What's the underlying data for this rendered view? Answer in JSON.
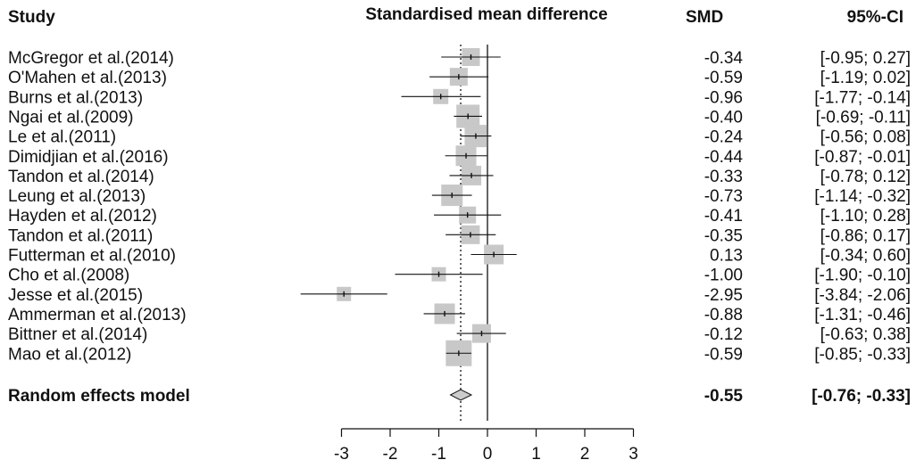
{
  "chart_data": {
    "type": "forest",
    "headers": {
      "study": "Study",
      "plot": "Standardised mean difference",
      "smd": "SMD",
      "ci": "95%-CI"
    },
    "studies": [
      {
        "name": "McGregor et al.(2014)",
        "smd": -0.34,
        "lower": -0.95,
        "upper": 0.27,
        "smd_text": "-0.34",
        "ci_text": "[-0.95;  0.27]",
        "weight": 1.0
      },
      {
        "name": "O'Mahen et al.(2013)",
        "smd": -0.59,
        "lower": -1.19,
        "upper": 0.02,
        "smd_text": "-0.59",
        "ci_text": "[-1.19;  0.02]",
        "weight": 1.0
      },
      {
        "name": "Burns et al.(2013)",
        "smd": -0.96,
        "lower": -1.77,
        "upper": -0.14,
        "smd_text": "-0.96",
        "ci_text": "[-1.77; -0.14]",
        "weight": 0.85
      },
      {
        "name": "Ngai et al.(2009)",
        "smd": -0.4,
        "lower": -0.69,
        "upper": -0.11,
        "smd_text": "-0.40",
        "ci_text": "[-0.69; -0.11]",
        "weight": 1.3
      },
      {
        "name": "Le et al.(2011)",
        "smd": -0.24,
        "lower": -0.56,
        "upper": 0.08,
        "smd_text": "-0.24",
        "ci_text": "[-0.56;  0.08]",
        "weight": 1.25
      },
      {
        "name": "Dimidjian et al.(2016)",
        "smd": -0.44,
        "lower": -0.87,
        "upper": -0.01,
        "smd_text": "-0.44",
        "ci_text": "[-0.87; -0.01]",
        "weight": 1.15
      },
      {
        "name": "Tandon et al.(2014)",
        "smd": -0.33,
        "lower": -0.78,
        "upper": 0.12,
        "smd_text": "-0.33",
        "ci_text": "[-0.78;  0.12]",
        "weight": 1.1
      },
      {
        "name": "Leung et al.(2013)",
        "smd": -0.73,
        "lower": -1.14,
        "upper": -0.32,
        "smd_text": "-0.73",
        "ci_text": "[-1.14; -0.32]",
        "weight": 1.2
      },
      {
        "name": "Hayden et al.(2012)",
        "smd": -0.41,
        "lower": -1.1,
        "upper": 0.28,
        "smd_text": "-0.41",
        "ci_text": "[-1.10;  0.28]",
        "weight": 0.95
      },
      {
        "name": "Tandon et al.(2011)",
        "smd": -0.35,
        "lower": -0.86,
        "upper": 0.17,
        "smd_text": "-0.35",
        "ci_text": "[-0.86;  0.17]",
        "weight": 1.05
      },
      {
        "name": "Futterman et al.(2010)",
        "smd": 0.13,
        "lower": -0.34,
        "upper": 0.6,
        "smd_text": "0.13",
        "ci_text": "[-0.34;  0.60]",
        "weight": 1.1
      },
      {
        "name": "Cho et al.(2008)",
        "smd": -1.0,
        "lower": -1.9,
        "upper": -0.1,
        "smd_text": "-1.00",
        "ci_text": "[-1.90; -0.10]",
        "weight": 0.8
      },
      {
        "name": "Jesse et al.(2015)",
        "smd": -2.95,
        "lower": -3.84,
        "upper": -2.06,
        "smd_text": "-2.95",
        "ci_text": "[-3.84; -2.06]",
        "weight": 0.8
      },
      {
        "name": "Ammerman et al.(2013)",
        "smd": -0.88,
        "lower": -1.31,
        "upper": -0.46,
        "smd_text": "-0.88",
        "ci_text": "[-1.31; -0.46]",
        "weight": 1.15
      },
      {
        "name": "Bittner et al.(2014)",
        "smd": -0.12,
        "lower": -0.63,
        "upper": 0.38,
        "smd_text": "-0.12",
        "ci_text": "[-0.63;  0.38]",
        "weight": 1.05
      },
      {
        "name": "Mao et al.(2012)",
        "smd": -0.59,
        "lower": -0.85,
        "upper": -0.33,
        "smd_text": "-0.59",
        "ci_text": "[-0.85; -0.33]",
        "weight": 1.45
      }
    ],
    "summary": {
      "name": "Random effects model",
      "smd": -0.55,
      "lower": -0.76,
      "upper": -0.33,
      "smd_text": "-0.55",
      "ci_text": "[-0.76; -0.33]"
    },
    "x_axis": {
      "ticks": [
        -3,
        -2,
        -1,
        0,
        1,
        2,
        3
      ],
      "tick_labels": [
        "-3",
        "-2",
        "-1",
        "0",
        "1",
        "2",
        "3"
      ],
      "range": [
        -3,
        3
      ]
    },
    "null_line": 0,
    "colors": {
      "box": "#c8c8c8",
      "line": "#111111",
      "diamond_fill": "#cccccc",
      "text": "#111111"
    }
  }
}
